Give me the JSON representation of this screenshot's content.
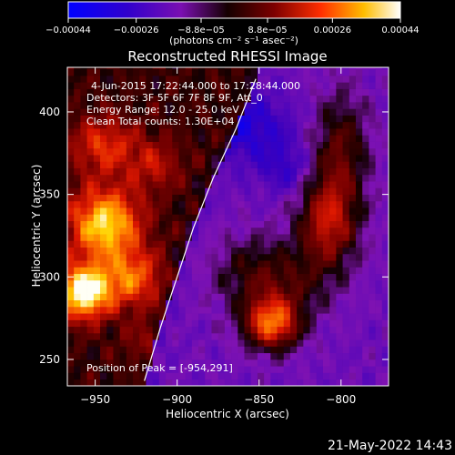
{
  "chart_data": {
    "type": "heatmap",
    "title": "Reconstructed RHESSI Image",
    "xlabel": "Heliocentric X (arcsec)",
    "ylabel": "Heliocentric Y (arcsec)",
    "xlim": [
      -967,
      -771
    ],
    "ylim": [
      234,
      427
    ],
    "xticks": [
      -950,
      -900,
      -850,
      -800
    ],
    "yticks": [
      250,
      300,
      350,
      400
    ],
    "colorbar": {
      "label": "(photons cm⁻² s⁻¹ asec⁻²)",
      "range": [
        -0.00044,
        0.00044
      ],
      "ticks": [
        {
          "value": -0.00044,
          "label": "-0.00044"
        },
        {
          "value": -0.00026,
          "label": "-0.00026"
        },
        {
          "value": -8.8e-05,
          "label": "-8.8e-05"
        },
        {
          "value": 8.8e-05,
          "label": "8.8e-05"
        },
        {
          "value": 0.00026,
          "label": "0.00026"
        },
        {
          "value": 0.00044,
          "label": "0.00044"
        }
      ]
    },
    "limb_points": [
      [
        -920,
        237
      ],
      [
        -910,
        270
      ],
      [
        -900,
        300
      ],
      [
        -890,
        330
      ],
      [
        -878,
        360
      ],
      [
        -864,
        390
      ],
      [
        -852,
        420
      ]
    ],
    "peak": [
      -954,
      291
    ]
  },
  "annotations": [
    "4-Jun-2015 17:22:44.000 to 17:28:44.000",
    "Detectors: 3F 5F 6F 7F 8F 9F, Att_0",
    "Energy Range: 12.0 - 25.0 keV",
    "Clean    Total counts: 1.30E+04"
  ],
  "peak_label": "Position of Peak = [-954,291]",
  "footer_timestamp": "21-May-2022 14:43",
  "colors": {
    "background": "#000000",
    "low": "#1010ff",
    "high": "#ffffff"
  }
}
